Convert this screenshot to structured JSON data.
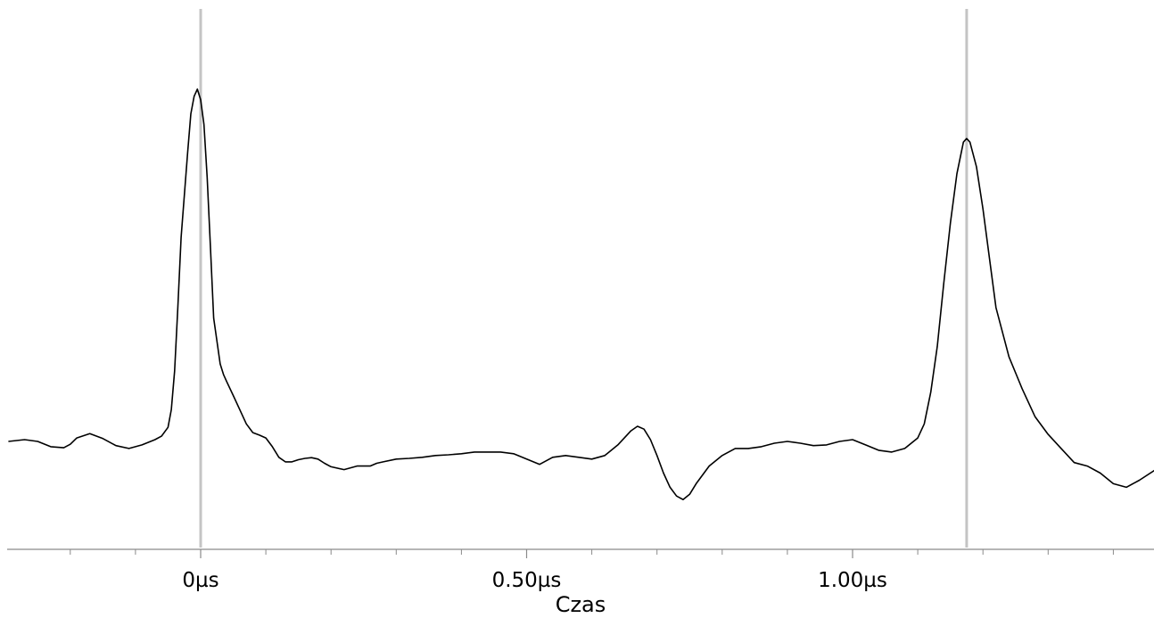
{
  "chart_data": {
    "type": "line",
    "title": "",
    "xlabel": "Czas",
    "ylabel": "",
    "xlim": [
      -0.295,
      1.465
    ],
    "ylim": [
      -0.28,
      1.0
    ],
    "grid": false,
    "x_unit": "µs",
    "tick_labels": [
      {
        "x": 0,
        "label": "0µs"
      },
      {
        "x": 0.5,
        "label": "0.50µs"
      },
      {
        "x": 1.0,
        "label": "1.00µs"
      }
    ],
    "minor_ticks": [
      -0.2,
      -0.1,
      0.1,
      0.2,
      0.3,
      0.4,
      0.6,
      0.7,
      0.8,
      0.9,
      1.1,
      1.2,
      1.3,
      1.4
    ],
    "markers_x": [
      0,
      1.175
    ],
    "series": [
      {
        "color": "#000000",
        "x": [
          -0.295,
          -0.27,
          -0.25,
          -0.23,
          -0.21,
          -0.2,
          -0.19,
          -0.17,
          -0.15,
          -0.13,
          -0.11,
          -0.09,
          -0.07,
          -0.06,
          -0.05,
          -0.045,
          -0.04,
          -0.035,
          -0.03,
          -0.02,
          -0.015,
          -0.01,
          -0.005,
          0.0,
          0.005,
          0.01,
          0.015,
          0.02,
          0.03,
          0.035,
          0.04,
          0.05,
          0.06,
          0.07,
          0.08,
          0.09,
          0.1,
          0.11,
          0.12,
          0.13,
          0.14,
          0.15,
          0.16,
          0.17,
          0.18,
          0.19,
          0.2,
          0.22,
          0.24,
          0.25,
          0.26,
          0.27,
          0.28,
          0.3,
          0.32,
          0.34,
          0.36,
          0.38,
          0.4,
          0.42,
          0.44,
          0.46,
          0.48,
          0.5,
          0.52,
          0.54,
          0.56,
          0.58,
          0.6,
          0.62,
          0.64,
          0.66,
          0.67,
          0.68,
          0.69,
          0.7,
          0.71,
          0.72,
          0.73,
          0.74,
          0.75,
          0.76,
          0.78,
          0.8,
          0.82,
          0.84,
          0.86,
          0.88,
          0.9,
          0.92,
          0.94,
          0.96,
          0.98,
          1.0,
          1.02,
          1.04,
          1.06,
          1.08,
          1.1,
          1.11,
          1.12,
          1.13,
          1.14,
          1.15,
          1.16,
          1.17,
          1.175,
          1.18,
          1.19,
          1.2,
          1.21,
          1.22,
          1.24,
          1.26,
          1.28,
          1.3,
          1.32,
          1.34,
          1.36,
          1.38,
          1.4,
          1.42,
          1.44,
          1.465
        ],
        "y": [
          0.0,
          0.005,
          0.0,
          -0.015,
          -0.018,
          -0.008,
          0.01,
          0.022,
          0.008,
          -0.012,
          -0.02,
          -0.01,
          0.005,
          0.015,
          0.04,
          0.09,
          0.2,
          0.38,
          0.58,
          0.82,
          0.93,
          0.98,
          1.0,
          0.97,
          0.9,
          0.75,
          0.55,
          0.35,
          0.22,
          0.19,
          0.17,
          0.13,
          0.09,
          0.05,
          0.025,
          0.018,
          0.01,
          -0.015,
          -0.045,
          -0.058,
          -0.058,
          -0.052,
          -0.048,
          -0.046,
          -0.05,
          -0.062,
          -0.072,
          -0.08,
          -0.07,
          -0.07,
          -0.07,
          -0.062,
          -0.058,
          -0.05,
          -0.048,
          -0.045,
          -0.04,
          -0.038,
          -0.035,
          -0.03,
          -0.03,
          -0.03,
          -0.035,
          -0.05,
          -0.065,
          -0.045,
          -0.04,
          -0.045,
          -0.05,
          -0.04,
          -0.01,
          0.03,
          0.043,
          0.035,
          0.005,
          -0.04,
          -0.09,
          -0.13,
          -0.155,
          -0.165,
          -0.15,
          -0.12,
          -0.07,
          -0.04,
          -0.02,
          -0.02,
          -0.015,
          -0.005,
          0.0,
          -0.005,
          -0.012,
          -0.01,
          0.0,
          0.005,
          -0.01,
          -0.025,
          -0.03,
          -0.02,
          0.01,
          0.05,
          0.14,
          0.27,
          0.45,
          0.62,
          0.76,
          0.85,
          0.86,
          0.85,
          0.78,
          0.66,
          0.52,
          0.38,
          0.24,
          0.15,
          0.07,
          0.02,
          -0.02,
          -0.06,
          -0.07,
          -0.09,
          -0.12,
          -0.13,
          -0.11,
          -0.08
        ]
      }
    ]
  }
}
